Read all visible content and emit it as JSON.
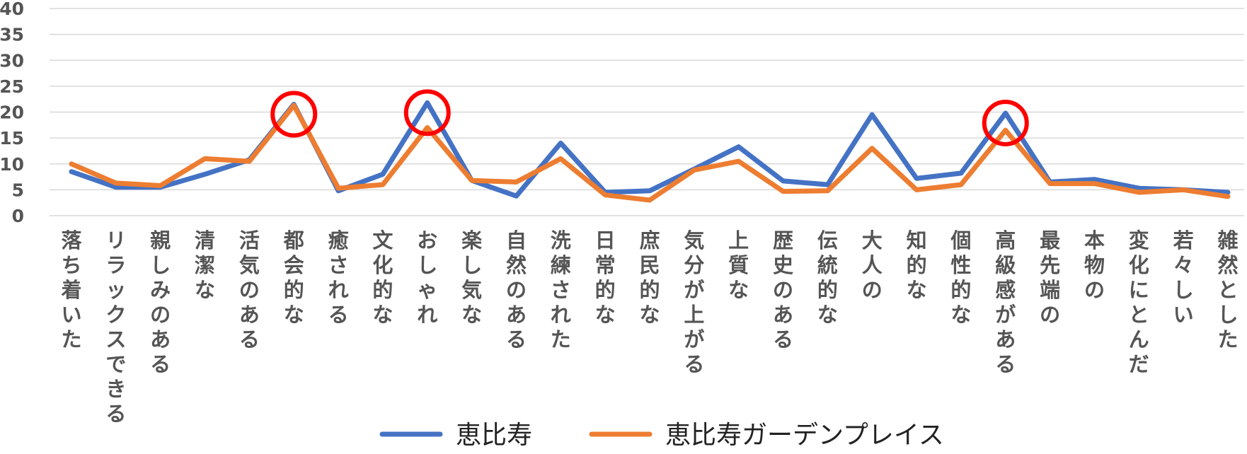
{
  "chart_data": {
    "type": "line",
    "categories": [
      "落ち着いた",
      "リラックスできる",
      "親しみのある",
      "清潔な",
      "活気のある",
      "都会的な",
      "癒される",
      "文化的な",
      "おしゃれ",
      "楽し気な",
      "自然のある",
      "洗練された",
      "日常的な",
      "庶民的な",
      "気分が上がる",
      "上質な",
      "歴史のある",
      "伝統的な",
      "大人の",
      "知的な",
      "個性的な",
      "高級感がある",
      "最先端の",
      "本物の",
      "変化にとんだ",
      "若々しい",
      "雑然とした"
    ],
    "series": [
      {
        "name": "恵比寿",
        "color": "#4472C4",
        "values": [
          8.5,
          5.5,
          5.5,
          8,
          10.8,
          21.5,
          4.8,
          8,
          21.8,
          6.8,
          3.8,
          14,
          4.5,
          4.8,
          9,
          13.3,
          6.7,
          6,
          19.5,
          7.2,
          8.2,
          19.8,
          6.5,
          7,
          5.3,
          5,
          4.5
        ]
      },
      {
        "name": "恵比寿ガーデンプレイス",
        "color": "#ED7D31",
        "values": [
          10,
          6.3,
          5.8,
          11,
          10.5,
          21.3,
          5.3,
          6,
          17,
          6.8,
          6.5,
          11,
          4,
          3,
          8.8,
          10.5,
          4.7,
          4.8,
          13,
          5,
          6,
          16.5,
          6.2,
          6.2,
          4.5,
          5,
          3.7
        ]
      }
    ],
    "ylim": [
      0,
      40
    ],
    "yticks": [
      "0",
      "5",
      "10",
      "15",
      "20",
      "25",
      "30",
      "35",
      "40"
    ],
    "grid": true,
    "legend_position": "bottom-center",
    "annotations": {
      "type": "circle",
      "color": "#FF0000",
      "categories": [
        "都会的な",
        "おしゃれ",
        "高級感がある"
      ]
    }
  }
}
